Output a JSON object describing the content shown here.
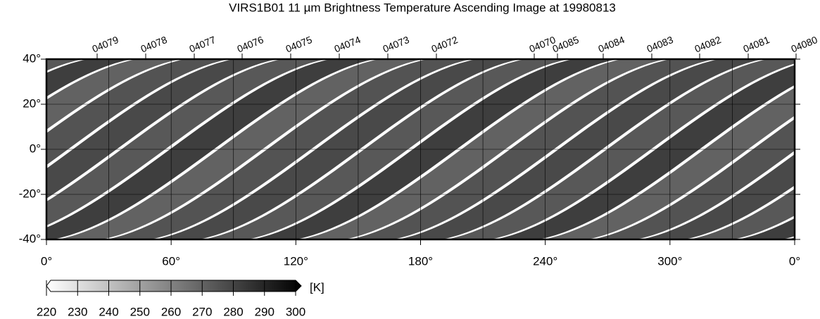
{
  "title": "VIRS1B01 11 µm Brightness Temperature Ascending Image at 19980813",
  "orbits": [
    "04079",
    "04078",
    "04077",
    "04076",
    "04075",
    "04074",
    "04073",
    "04072",
    "04070",
    "04085",
    "04084",
    "04083",
    "04082",
    "04081",
    "04080"
  ],
  "lat_labels": [
    "40°",
    "20°",
    "0°",
    "-20°",
    "-40°"
  ],
  "lon_labels": [
    "0°",
    "60°",
    "120°",
    "180°",
    "240°",
    "300°",
    "0°"
  ],
  "colorbar": {
    "ticks": [
      220,
      230,
      240,
      250,
      260,
      270,
      280,
      290,
      300
    ],
    "unit": "[K]"
  }
}
